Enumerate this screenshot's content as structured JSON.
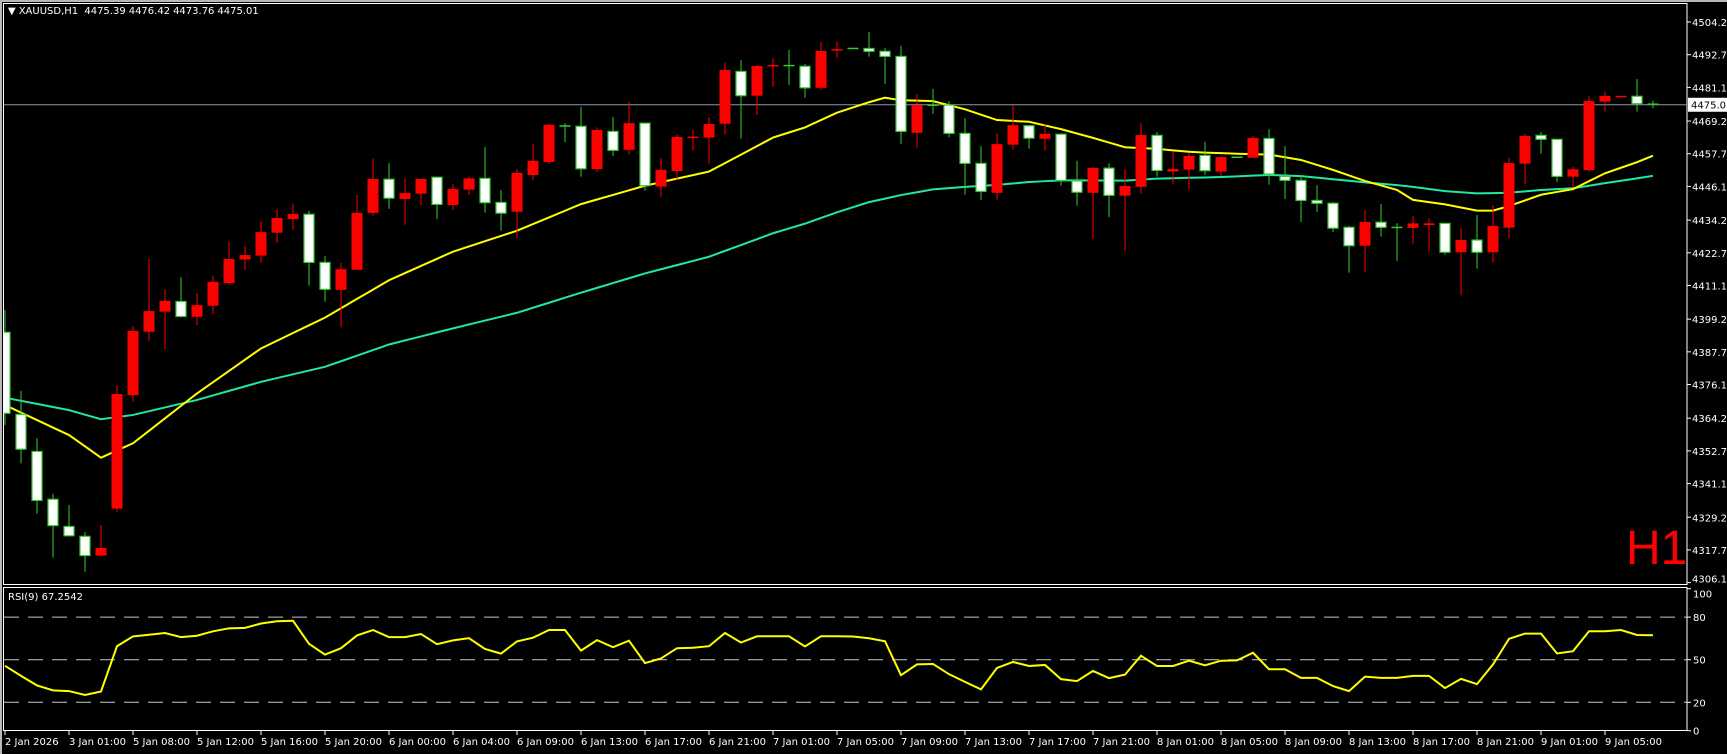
{
  "header": {
    "symbol": "XAUUSD,H1",
    "open": "4475.39",
    "high": "4476.42",
    "low": "4473.76",
    "close": "4475.01",
    "menu_icon": "triangle-down-icon"
  },
  "watermark": "H1",
  "indicator": {
    "label": "RSI(9)",
    "value": "67.2542"
  },
  "current_price": "4475.01",
  "colors": {
    "background": "#000000",
    "bull_body": "#ff0000",
    "bear_body": "#ffffff",
    "bear_outline": "#32cd32",
    "ma_fast": "#ffff00",
    "ma_slow": "#20e8a0",
    "rsi_line": "#ffff00",
    "price_line": "#8a98a8",
    "watermark": "#ff0000",
    "grid": "none"
  },
  "chart_data": {
    "type": "candlestick",
    "price_axis_ticks": [
      "4504.25",
      "4492.70",
      "4481.15",
      "4469.25",
      "4457.70",
      "4446.15",
      "4434.25",
      "4422.70",
      "4411.15",
      "4399.25",
      "4387.70",
      "4376.15",
      "4364.25",
      "4352.70",
      "4341.15",
      "4329.25",
      "4317.70",
      "4306.15"
    ],
    "time_axis_labels": [
      "2 Jan 2026",
      "3 Jan 01:00",
      "5 Jan 08:00",
      "5 Jan 12:00",
      "5 Jan 16:00",
      "5 Jan 20:00",
      "6 Jan 00:00",
      "6 Jan 04:00",
      "6 Jan 09:00",
      "6 Jan 13:00",
      "6 Jan 17:00",
      "6 Jan 21:00",
      "7 Jan 01:00",
      "7 Jan 05:00",
      "7 Jan 09:00",
      "7 Jan 13:00",
      "7 Jan 17:00",
      "7 Jan 21:00",
      "8 Jan 01:00",
      "8 Jan 05:00",
      "8 Jan 09:00",
      "8 Jan 13:00",
      "8 Jan 17:00",
      "8 Jan 21:00",
      "9 Jan 01:00",
      "9 Jan 05:00"
    ],
    "bars_per_time_label": 4,
    "ohlc_fields": [
      "open",
      "high",
      "low",
      "close"
    ],
    "ohlc": [
      [
        4394.6,
        4402.5,
        4361.8,
        4366.0
      ],
      [
        4365.6,
        4373.9,
        4348.3,
        4353.3
      ],
      [
        4352.5,
        4357.2,
        4330.5,
        4335.2
      ],
      [
        4335.6,
        4337.5,
        4315.0,
        4326.3
      ],
      [
        4326.0,
        4333.6,
        4322.7,
        4322.7
      ],
      [
        4322.5,
        4324.0,
        4310.0,
        4315.7
      ],
      [
        4315.7,
        4326.5,
        4315.7,
        4318.4
      ],
      [
        4332.3,
        4376.0,
        4331.2,
        4372.8
      ],
      [
        4372.4,
        4396.8,
        4370.1,
        4395.1
      ],
      [
        4394.8,
        4420.5,
        4391.6,
        4402.1
      ],
      [
        4401.9,
        4409.9,
        4388.7,
        4405.7
      ],
      [
        4405.5,
        4414.1,
        4399.8,
        4400.2
      ],
      [
        4400.1,
        4408.5,
        4397.2,
        4404.2
      ],
      [
        4404.0,
        4414.5,
        4401.1,
        4412.4
      ],
      [
        4412.0,
        4426.6,
        4411.3,
        4420.5
      ],
      [
        4420.3,
        4425.1,
        4416.6,
        4421.9
      ],
      [
        4421.7,
        4433.9,
        4419.1,
        4430.0
      ],
      [
        4429.8,
        4438.2,
        4426.2,
        4435.0
      ],
      [
        4434.6,
        4440.0,
        4430.8,
        4436.4
      ],
      [
        4436.3,
        4437.5,
        4411.1,
        4419.3
      ],
      [
        4419.3,
        4421.6,
        4405.4,
        4409.8
      ],
      [
        4409.6,
        4419.1,
        4396.4,
        4416.9
      ],
      [
        4416.7,
        4443.1,
        4416.7,
        4436.8
      ],
      [
        4436.8,
        4455.9,
        4435.8,
        4448.8
      ],
      [
        4448.7,
        4454.4,
        4438.2,
        4442.0
      ],
      [
        4441.7,
        4449.1,
        4432.6,
        4443.8
      ],
      [
        4443.6,
        4448.8,
        4439.6,
        4448.8
      ],
      [
        4449.4,
        4449.4,
        4434.6,
        4439.8
      ],
      [
        4439.6,
        4447.1,
        4437.8,
        4445.2
      ],
      [
        4445.0,
        4449.6,
        4443.1,
        4449.0
      ],
      [
        4449.0,
        4460.1,
        4436.9,
        4440.4
      ],
      [
        4440.5,
        4444.9,
        4430.5,
        4436.7
      ],
      [
        4437.2,
        4452.3,
        4428.0,
        4450.9
      ],
      [
        4450.2,
        4461.1,
        4448.4,
        4455.2
      ],
      [
        4454.8,
        4468.2,
        4454.1,
        4467.9
      ],
      [
        4467.6,
        4468.5,
        4461.8,
        4467.4
      ],
      [
        4467.4,
        4474.2,
        4449.6,
        4452.4
      ],
      [
        4452.3,
        4467.0,
        4451.3,
        4466.1
      ],
      [
        4465.6,
        4470.7,
        4456.9,
        4458.9
      ],
      [
        4459.1,
        4476.1,
        4457.4,
        4468.5
      ],
      [
        4468.5,
        4468.5,
        4444.6,
        4446.4
      ],
      [
        4446.1,
        4456.2,
        4442.5,
        4452.0
      ],
      [
        4451.6,
        4464.6,
        4448.4,
        4463.6
      ],
      [
        4463.4,
        4466.4,
        4458.8,
        4463.6
      ],
      [
        4463.4,
        4470.7,
        4454.1,
        4468.2
      ],
      [
        4468.3,
        4489.9,
        4464.4,
        4487.3
      ],
      [
        4486.8,
        4490.8,
        4463.0,
        4478.2
      ],
      [
        4478.2,
        4489.1,
        4471.4,
        4488.7
      ],
      [
        4488.7,
        4491.5,
        4481.3,
        4488.9
      ],
      [
        4488.9,
        4494.4,
        4482.0,
        4488.8
      ],
      [
        4488.6,
        4489.4,
        4477.5,
        4481.0
      ],
      [
        4481.0,
        4497.2,
        4480.2,
        4494.0
      ],
      [
        4494.2,
        4497.5,
        4491.6,
        4494.6
      ],
      [
        4494.9,
        4495.0,
        4494.8,
        4494.9
      ],
      [
        4494.9,
        4500.7,
        4492.0,
        4493.9
      ],
      [
        4493.9,
        4495.0,
        4482.4,
        4492.1
      ],
      [
        4492.1,
        4495.8,
        4461.2,
        4465.6
      ],
      [
        4465.1,
        4478.8,
        4459.8,
        4474.9
      ],
      [
        4474.9,
        4480.6,
        4471.8,
        4474.8
      ],
      [
        4474.9,
        4476.3,
        4463.5,
        4464.9
      ],
      [
        4464.9,
        4470.3,
        4443.2,
        4454.3
      ],
      [
        4454.3,
        4460.4,
        4441.4,
        4444.4
      ],
      [
        4443.9,
        4465.0,
        4441.4,
        4461.1
      ],
      [
        4460.9,
        4474.9,
        4459.1,
        4467.8
      ],
      [
        4467.6,
        4467.8,
        4459.5,
        4463.2
      ],
      [
        4463.0,
        4468.3,
        4458.8,
        4464.7
      ],
      [
        4464.6,
        4464.8,
        4446.4,
        4448.2
      ],
      [
        4448.1,
        4455.2,
        4439.3,
        4444.1
      ],
      [
        4443.9,
        4453.0,
        4427.6,
        4452.7
      ],
      [
        4452.6,
        4454.4,
        4435.3,
        4443.0
      ],
      [
        4442.9,
        4452.3,
        4423.3,
        4446.3
      ],
      [
        4446.0,
        4468.5,
        4443.6,
        4464.3
      ],
      [
        4464.2,
        4465.4,
        4449.6,
        4451.8
      ],
      [
        4451.4,
        4458.4,
        4447.1,
        4452.3
      ],
      [
        4452.1,
        4458.0,
        4445.2,
        4456.9
      ],
      [
        4457.1,
        4461.9,
        4450.2,
        4451.7
      ],
      [
        4451.4,
        4456.8,
        4449.8,
        4456.5
      ],
      [
        4456.5,
        4456.5,
        4456.4,
        4456.4
      ],
      [
        4456.3,
        4464.0,
        4456.3,
        4463.3
      ],
      [
        4463.1,
        4466.4,
        4446.8,
        4450.5
      ],
      [
        4449.7,
        4460.4,
        4441.7,
        4448.3
      ],
      [
        4448.3,
        4449.8,
        4433.6,
        4441.2
      ],
      [
        4441.2,
        4446.6,
        4437.1,
        4440.2
      ],
      [
        4440.2,
        4440.6,
        4430.0,
        4431.4
      ],
      [
        4431.7,
        4432.3,
        4415.7,
        4425.2
      ],
      [
        4425.2,
        4437.8,
        4415.9,
        4433.6
      ],
      [
        4433.5,
        4440.0,
        4428.4,
        4431.7
      ],
      [
        4431.7,
        4433.2,
        4419.8,
        4431.6
      ],
      [
        4431.5,
        4435.7,
        4425.9,
        4433.1
      ],
      [
        4432.5,
        4434.9,
        4423.1,
        4433.1
      ],
      [
        4433.1,
        4433.1,
        4422.0,
        4422.9
      ],
      [
        4422.9,
        4431.5,
        4407.7,
        4427.2
      ],
      [
        4427.2,
        4436.1,
        4417.1,
        4422.9
      ],
      [
        4422.9,
        4439.6,
        4419.2,
        4432.2
      ],
      [
        4431.6,
        4456.3,
        4427.7,
        4454.4
      ],
      [
        4454.2,
        4464.7,
        4446.8,
        4464.0
      ],
      [
        4464.2,
        4465.4,
        4457.7,
        4462.8
      ],
      [
        4462.8,
        4462.8,
        4447.8,
        4449.7
      ],
      [
        4449.6,
        4453.1,
        4445.8,
        4452.2
      ],
      [
        4451.9,
        4478.1,
        4451.4,
        4476.3
      ],
      [
        4476.1,
        4479.6,
        4472.6,
        4478.1
      ],
      [
        4477.8,
        4478.0,
        4477.8,
        4478.0
      ],
      [
        4478.0,
        4484.1,
        4472.6,
        4475.4
      ],
      [
        4475.39,
        4476.42,
        4473.76,
        4475.01
      ]
    ],
    "ma_fast_points": [
      [
        0,
        4368.9
      ],
      [
        4,
        4358.3
      ],
      [
        6,
        4350.3
      ],
      [
        8,
        4355.4
      ],
      [
        12,
        4373.0
      ],
      [
        16,
        4388.9
      ],
      [
        20,
        4399.8
      ],
      [
        24,
        4413.0
      ],
      [
        28,
        4423.1
      ],
      [
        32,
        4430.5
      ],
      [
        36,
        4439.9
      ],
      [
        40,
        4446.4
      ],
      [
        44,
        4451.4
      ],
      [
        48,
        4463.4
      ],
      [
        50,
        4467.0
      ],
      [
        52,
        4472.2
      ],
      [
        54,
        4475.9
      ],
      [
        55,
        4477.5
      ],
      [
        56,
        4476.6
      ],
      [
        58,
        4476.3
      ],
      [
        60,
        4473.4
      ],
      [
        62,
        4469.6
      ],
      [
        64,
        4469.0
      ],
      [
        66,
        4466.4
      ],
      [
        68,
        4463.3
      ],
      [
        70,
        4460.0
      ],
      [
        72,
        4459.4
      ],
      [
        74,
        4458.4
      ],
      [
        75,
        4458.1
      ],
      [
        77,
        4457.7
      ],
      [
        79,
        4457.4
      ],
      [
        81,
        4455.5
      ],
      [
        83,
        4452.0
      ],
      [
        85,
        4448.1
      ],
      [
        87,
        4444.9
      ],
      [
        88,
        4441.4
      ],
      [
        90,
        4439.8
      ],
      [
        92,
        4437.6
      ],
      [
        93,
        4437.6
      ],
      [
        94,
        4439.2
      ],
      [
        96,
        4443.2
      ],
      [
        98,
        4445.2
      ],
      [
        100,
        4450.8
      ],
      [
        102,
        4454.7
      ],
      [
        103,
        4457.0
      ]
    ],
    "ma_slow_points": [
      [
        0,
        4371.5
      ],
      [
        4,
        4367.1
      ],
      [
        6,
        4363.9
      ],
      [
        8,
        4365.4
      ],
      [
        12,
        4370.7
      ],
      [
        16,
        4377.1
      ],
      [
        20,
        4382.4
      ],
      [
        24,
        4390.3
      ],
      [
        28,
        4396.0
      ],
      [
        32,
        4401.5
      ],
      [
        36,
        4408.6
      ],
      [
        40,
        4415.4
      ],
      [
        44,
        4421.3
      ],
      [
        48,
        4429.6
      ],
      [
        50,
        4433.0
      ],
      [
        52,
        4437.0
      ],
      [
        54,
        4440.6
      ],
      [
        56,
        4443.1
      ],
      [
        58,
        4445.1
      ],
      [
        60,
        4446.0
      ],
      [
        62,
        4446.7
      ],
      [
        64,
        4447.7
      ],
      [
        66,
        4448.3
      ],
      [
        70,
        4448.2
      ],
      [
        72,
        4448.9
      ],
      [
        74,
        4449.2
      ],
      [
        75,
        4449.3
      ],
      [
        77,
        4449.7
      ],
      [
        79,
        4450.2
      ],
      [
        81,
        4449.8
      ],
      [
        83,
        4448.7
      ],
      [
        85,
        4447.6
      ],
      [
        87,
        4446.6
      ],
      [
        88,
        4446.0
      ],
      [
        90,
        4444.5
      ],
      [
        92,
        4443.7
      ],
      [
        94,
        4443.9
      ],
      [
        96,
        4444.9
      ],
      [
        98,
        4445.5
      ],
      [
        100,
        4447.3
      ],
      [
        102,
        4449.0
      ],
      [
        103,
        4449.9
      ]
    ],
    "rsi": {
      "levels": [
        80,
        50,
        20
      ],
      "axis_ticks": [
        "100",
        "80",
        "50",
        "20",
        "0"
      ],
      "ylim": [
        0,
        100
      ],
      "values": [
        45.7,
        38.6,
        31.9,
        28.4,
        27.9,
        25.2,
        27.6,
        59.5,
        66.4,
        67.6,
        68.8,
        65.9,
        66.9,
        70.0,
        72.1,
        72.4,
        75.5,
        77.1,
        77.4,
        61.2,
        53.6,
        58.1,
        67.1,
        70.9,
        65.9,
        65.9,
        68.1,
        60.9,
        63.6,
        65.2,
        57.6,
        54.3,
        62.9,
        65.5,
        70.9,
        70.9,
        56.4,
        63.8,
        58.8,
        63.4,
        47.6,
        50.9,
        58.1,
        58.4,
        59.5,
        68.8,
        62.1,
        66.5,
        66.5,
        66.5,
        59.3,
        66.5,
        66.5,
        66.3,
        65.1,
        63.0,
        39.1,
        46.7,
        47.0,
        39.8,
        34.4,
        29.1,
        44.2,
        48.4,
        45.6,
        46.3,
        36.3,
        34.9,
        42.1,
        37.0,
        39.5,
        52.8,
        45.6,
        45.6,
        49.3,
        46.0,
        49.3,
        49.5,
        54.9,
        43.3,
        43.3,
        37.2,
        37.2,
        31.4,
        27.9,
        38.1,
        37.2,
        37.2,
        38.6,
        38.6,
        30.0,
        36.5,
        32.8,
        46.7,
        64.7,
        68.4,
        68.4,
        54.4,
        56.0,
        70.0,
        70.0,
        70.9,
        67.4,
        67.25
      ]
    }
  }
}
